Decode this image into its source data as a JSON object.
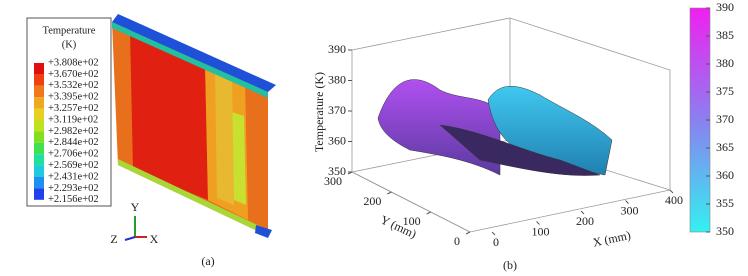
{
  "panel_a": {
    "legend": {
      "title": "Temperature",
      "unit": "(K)",
      "levels": [
        {
          "value": 380.8,
          "label": "+3.808e+02"
        },
        {
          "value": 367.0,
          "label": "+3.670e+02"
        },
        {
          "value": 353.2,
          "label": "+3.532e+02"
        },
        {
          "value": 339.5,
          "label": "+3.395e+02"
        },
        {
          "value": 325.7,
          "label": "+3.257e+02"
        },
        {
          "value": 311.9,
          "label": "+3.119e+02"
        },
        {
          "value": 298.2,
          "label": "+2.982e+02"
        },
        {
          "value": 284.4,
          "label": "+2.844e+02"
        },
        {
          "value": 270.6,
          "label": "+2.706e+02"
        },
        {
          "value": 256.9,
          "label": "+2.569e+02"
        },
        {
          "value": 243.1,
          "label": "+2.431e+02"
        },
        {
          "value": 229.3,
          "label": "+2.293e+02"
        },
        {
          "value": 215.6,
          "label": "+2.156e+02"
        }
      ]
    },
    "triad": {
      "y": "Y",
      "z": "Z",
      "x": "X"
    },
    "caption": "(a)"
  },
  "panel_b": {
    "z_label": "Temperature (K)",
    "y_label": "Y (mm)",
    "x_label": "X (mm)",
    "zlim": [
      350,
      390
    ],
    "zticks": [
      350,
      360,
      370,
      380,
      390
    ],
    "ylim": [
      0,
      300
    ],
    "yticks": [
      0,
      100,
      200,
      300
    ],
    "xlim": [
      0,
      400
    ],
    "xticks": [
      0,
      100,
      200,
      300,
      400
    ],
    "colorbar": {
      "lim": [
        350,
        390
      ],
      "ticks": [
        350,
        355,
        360,
        365,
        370,
        375,
        380,
        385,
        390
      ]
    },
    "caption": "(b)"
  }
}
